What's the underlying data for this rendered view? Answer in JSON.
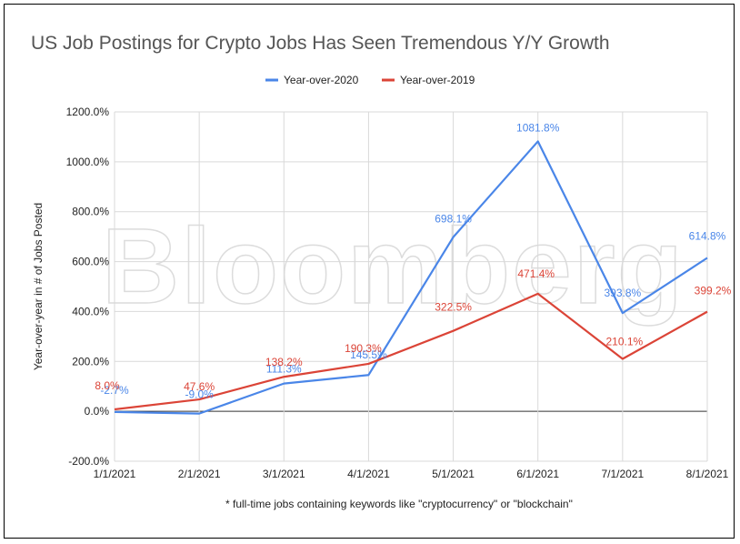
{
  "chart_data": {
    "type": "line",
    "title": "US Job Postings for Crypto Jobs Has Seen Tremendous Y/Y Growth",
    "ylabel": "Year-over-year in # of Jobs Posted",
    "xlabel": "",
    "categories": [
      "1/1/2021",
      "2/1/2021",
      "3/1/2021",
      "4/1/2021",
      "5/1/2021",
      "6/1/2021",
      "7/1/2021",
      "8/1/2021"
    ],
    "ylim": [
      -200,
      1200
    ],
    "yticks": [
      "-200.0%",
      "0.0%",
      "200.0%",
      "400.0%",
      "600.0%",
      "800.0%",
      "1000.0%",
      "1200.0%"
    ],
    "ytick_values": [
      -200,
      0,
      200,
      400,
      600,
      800,
      1000,
      1200
    ],
    "legend_position": "top-center",
    "watermark": "Bloomberg",
    "footnote": "* full-time jobs containing keywords like \"cryptocurrency\" or \"blockchain\"",
    "series": [
      {
        "name": "Year-over-2020",
        "color": "#4a86e8",
        "values": [
          -2.7,
          -9.0,
          111.3,
          145.5,
          698.1,
          1081.8,
          393.8,
          614.8
        ],
        "labels": [
          "-2.7%",
          "-9.0%",
          "111.3%",
          "145.5%",
          "698.1%",
          "1081.8%",
          "393.8%",
          "614.8%"
        ]
      },
      {
        "name": "Year-over-2019",
        "color": "#db4437",
        "values": [
          8.0,
          47.6,
          138.2,
          190.3,
          322.5,
          471.4,
          210.1,
          399.2
        ],
        "labels": [
          "8.0%",
          "47.6%",
          "138.2%",
          "190.3%",
          "322.5%",
          "471.4%",
          "210.1%",
          "399.2%"
        ]
      }
    ]
  }
}
